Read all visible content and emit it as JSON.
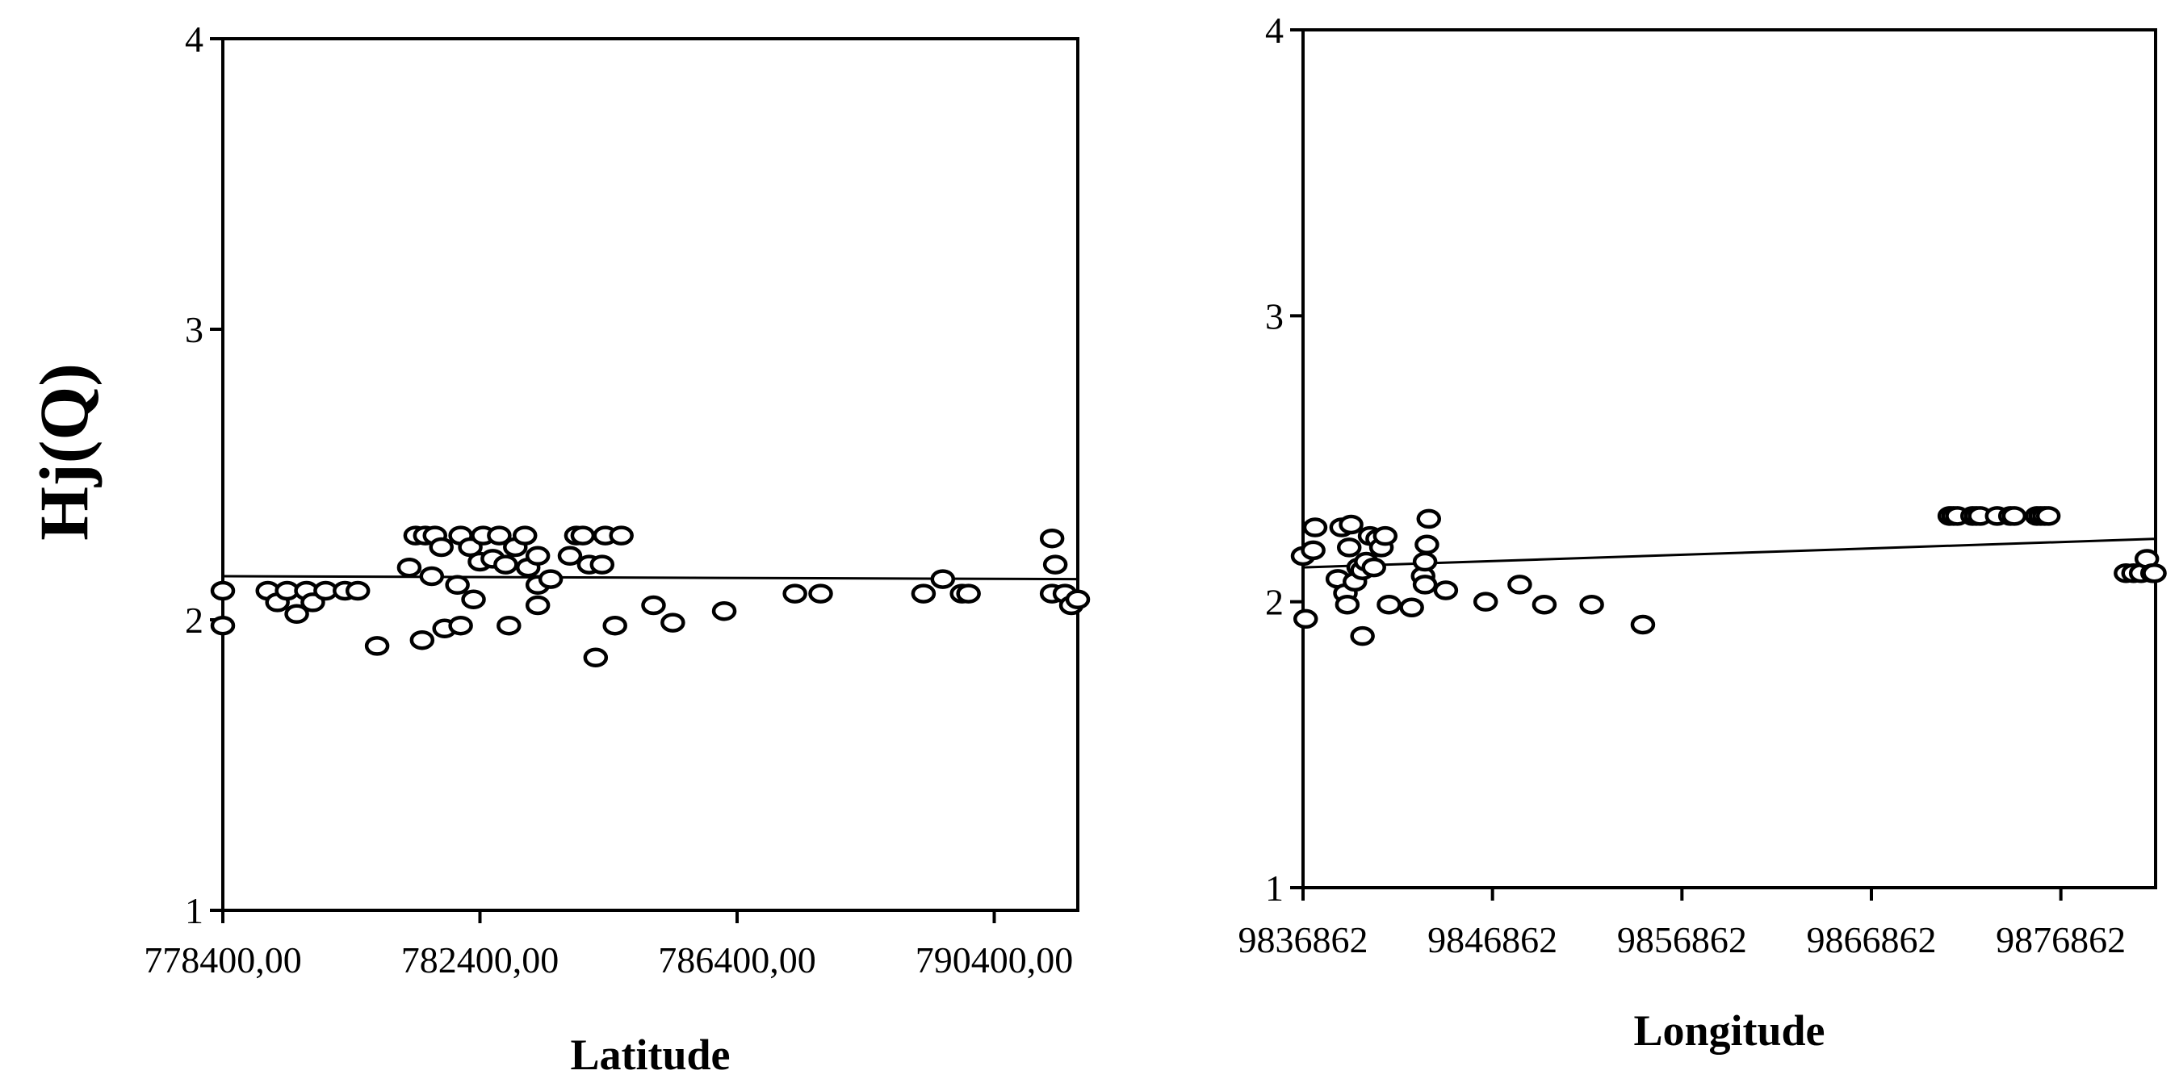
{
  "shared_ylabel": "Hj(Q)",
  "chart_data": [
    {
      "type": "scatter",
      "xlabel": "Latitude",
      "ylabel": "Hj(Q)",
      "xlim": [
        778400,
        791700
      ],
      "ylim": [
        1,
        4
      ],
      "xticks": [
        778400,
        782400,
        786400,
        790400
      ],
      "xtick_labels": [
        "778400,00",
        "782400,00",
        "786400,00",
        "790400,00"
      ],
      "yticks": [
        1,
        2,
        3,
        4
      ],
      "ytick_labels": [
        "1",
        "2",
        "3",
        "4"
      ],
      "grid": false,
      "trendline": {
        "x": [
          778400,
          791700
        ],
        "y": [
          2.15,
          2.14
        ]
      },
      "points": [
        {
          "x": 778400,
          "y": 2.1
        },
        {
          "x": 778400,
          "y": 1.98
        },
        {
          "x": 779100,
          "y": 2.1
        },
        {
          "x": 779250,
          "y": 2.06
        },
        {
          "x": 779400,
          "y": 2.1
        },
        {
          "x": 779550,
          "y": 2.02
        },
        {
          "x": 779700,
          "y": 2.1
        },
        {
          "x": 779800,
          "y": 2.06
        },
        {
          "x": 780000,
          "y": 2.1
        },
        {
          "x": 780300,
          "y": 2.1
        },
        {
          "x": 780500,
          "y": 2.1
        },
        {
          "x": 780800,
          "y": 1.91
        },
        {
          "x": 781300,
          "y": 2.18
        },
        {
          "x": 781400,
          "y": 2.29
        },
        {
          "x": 781550,
          "y": 2.29
        },
        {
          "x": 781500,
          "y": 1.93
        },
        {
          "x": 781650,
          "y": 2.15
        },
        {
          "x": 781700,
          "y": 2.29
        },
        {
          "x": 781800,
          "y": 2.25
        },
        {
          "x": 781850,
          "y": 1.97
        },
        {
          "x": 782050,
          "y": 2.12
        },
        {
          "x": 782100,
          "y": 2.29
        },
        {
          "x": 782100,
          "y": 1.98
        },
        {
          "x": 782250,
          "y": 2.25
        },
        {
          "x": 782300,
          "y": 2.07
        },
        {
          "x": 782400,
          "y": 2.2
        },
        {
          "x": 782450,
          "y": 2.29
        },
        {
          "x": 782600,
          "y": 2.21
        },
        {
          "x": 782700,
          "y": 2.29
        },
        {
          "x": 782800,
          "y": 2.19
        },
        {
          "x": 782850,
          "y": 1.98
        },
        {
          "x": 782950,
          "y": 2.25
        },
        {
          "x": 783100,
          "y": 2.29
        },
        {
          "x": 783150,
          "y": 2.18
        },
        {
          "x": 783300,
          "y": 2.22
        },
        {
          "x": 783300,
          "y": 2.12
        },
        {
          "x": 783300,
          "y": 2.05
        },
        {
          "x": 783500,
          "y": 2.14
        },
        {
          "x": 783800,
          "y": 2.22
        },
        {
          "x": 783900,
          "y": 2.29
        },
        {
          "x": 784000,
          "y": 2.29
        },
        {
          "x": 784100,
          "y": 2.19
        },
        {
          "x": 784200,
          "y": 1.87
        },
        {
          "x": 784300,
          "y": 2.19
        },
        {
          "x": 784350,
          "y": 2.29
        },
        {
          "x": 784500,
          "y": 1.98
        },
        {
          "x": 784600,
          "y": 2.29
        },
        {
          "x": 785100,
          "y": 2.05
        },
        {
          "x": 785400,
          "y": 1.99
        },
        {
          "x": 786200,
          "y": 2.03
        },
        {
          "x": 787300,
          "y": 2.09
        },
        {
          "x": 787700,
          "y": 2.09
        },
        {
          "x": 789300,
          "y": 2.09
        },
        {
          "x": 789600,
          "y": 2.14
        },
        {
          "x": 789900,
          "y": 2.09
        },
        {
          "x": 790000,
          "y": 2.09
        },
        {
          "x": 791300,
          "y": 2.09
        },
        {
          "x": 791300,
          "y": 2.28
        },
        {
          "x": 791350,
          "y": 2.19
        },
        {
          "x": 791500,
          "y": 2.09
        },
        {
          "x": 791600,
          "y": 2.05
        },
        {
          "x": 791700,
          "y": 2.07
        }
      ]
    },
    {
      "type": "scatter",
      "xlabel": "Longitude",
      "ylabel": "Hj(Q)",
      "xlim": [
        9836862,
        9881862
      ],
      "ylim": [
        1,
        4
      ],
      "xticks": [
        9836862,
        9846862,
        9856862,
        9866862,
        9876862
      ],
      "xtick_labels": [
        "9836862",
        "9846862",
        "9856862",
        "9866862",
        "9876862"
      ],
      "yticks": [
        1,
        2,
        3,
        4
      ],
      "ytick_labels": [
        "1",
        "2",
        "3",
        "4"
      ],
      "grid": false,
      "trendline": {
        "x": [
          9836862,
          9881862
        ],
        "y": [
          2.12,
          2.22
        ]
      },
      "points": [
        {
          "x": 9836862,
          "y": 2.16
        },
        {
          "x": 9837000,
          "y": 1.94
        },
        {
          "x": 9837400,
          "y": 2.18
        },
        {
          "x": 9837500,
          "y": 2.26
        },
        {
          "x": 9838700,
          "y": 2.08
        },
        {
          "x": 9838900,
          "y": 2.26
        },
        {
          "x": 9839100,
          "y": 2.03
        },
        {
          "x": 9839200,
          "y": 1.99
        },
        {
          "x": 9839300,
          "y": 2.19
        },
        {
          "x": 9839400,
          "y": 2.27
        },
        {
          "x": 9839600,
          "y": 2.07
        },
        {
          "x": 9839800,
          "y": 2.12
        },
        {
          "x": 9840000,
          "y": 2.11
        },
        {
          "x": 9840000,
          "y": 1.88
        },
        {
          "x": 9840200,
          "y": 2.14
        },
        {
          "x": 9840400,
          "y": 2.23
        },
        {
          "x": 9840600,
          "y": 2.12
        },
        {
          "x": 9840800,
          "y": 2.22
        },
        {
          "x": 9841000,
          "y": 2.19
        },
        {
          "x": 9841200,
          "y": 2.23
        },
        {
          "x": 9841400,
          "y": 1.99
        },
        {
          "x": 9842600,
          "y": 1.98
        },
        {
          "x": 9843200,
          "y": 2.09
        },
        {
          "x": 9843300,
          "y": 2.14
        },
        {
          "x": 9843300,
          "y": 2.06
        },
        {
          "x": 9843400,
          "y": 2.2
        },
        {
          "x": 9843500,
          "y": 2.29
        },
        {
          "x": 9844400,
          "y": 2.04
        },
        {
          "x": 9846500,
          "y": 2.0
        },
        {
          "x": 9848300,
          "y": 2.06
        },
        {
          "x": 9849600,
          "y": 1.99
        },
        {
          "x": 9852100,
          "y": 1.99
        },
        {
          "x": 9854800,
          "y": 1.92
        },
        {
          "x": 9871000,
          "y": 2.3
        },
        {
          "x": 9871200,
          "y": 2.3
        },
        {
          "x": 9871400,
          "y": 2.3
        },
        {
          "x": 9872200,
          "y": 2.3
        },
        {
          "x": 9872400,
          "y": 2.3
        },
        {
          "x": 9872600,
          "y": 2.3
        },
        {
          "x": 9873500,
          "y": 2.3
        },
        {
          "x": 9874200,
          "y": 2.3
        },
        {
          "x": 9874400,
          "y": 2.3
        },
        {
          "x": 9875600,
          "y": 2.3
        },
        {
          "x": 9875800,
          "y": 2.3
        },
        {
          "x": 9876000,
          "y": 2.3
        },
        {
          "x": 9876200,
          "y": 2.3
        },
        {
          "x": 9880300,
          "y": 2.1
        },
        {
          "x": 9880700,
          "y": 2.1
        },
        {
          "x": 9881100,
          "y": 2.1
        },
        {
          "x": 9881400,
          "y": 2.15
        },
        {
          "x": 9881700,
          "y": 2.1
        },
        {
          "x": 9881800,
          "y": 2.1
        }
      ]
    }
  ]
}
